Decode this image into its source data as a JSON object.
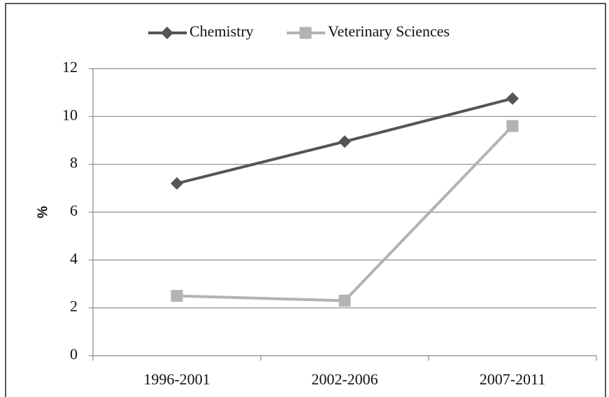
{
  "chart_data": {
    "type": "line",
    "categories": [
      "1996-2001",
      "2002-2006",
      "2007-2011"
    ],
    "series": [
      {
        "name": "Chemistry",
        "color": "#555555",
        "marker": "diamond",
        "values": [
          7.2,
          8.95,
          10.75
        ]
      },
      {
        "name": "Veterinary Sciences",
        "color": "#b3b3b3",
        "marker": "square",
        "values": [
          2.5,
          2.3,
          9.6
        ]
      }
    ],
    "y_label": "%",
    "ylim": [
      0,
      12
    ],
    "yticks": [
      0,
      2,
      4,
      6,
      8,
      10,
      12
    ],
    "grid": true,
    "legend": "top"
  }
}
